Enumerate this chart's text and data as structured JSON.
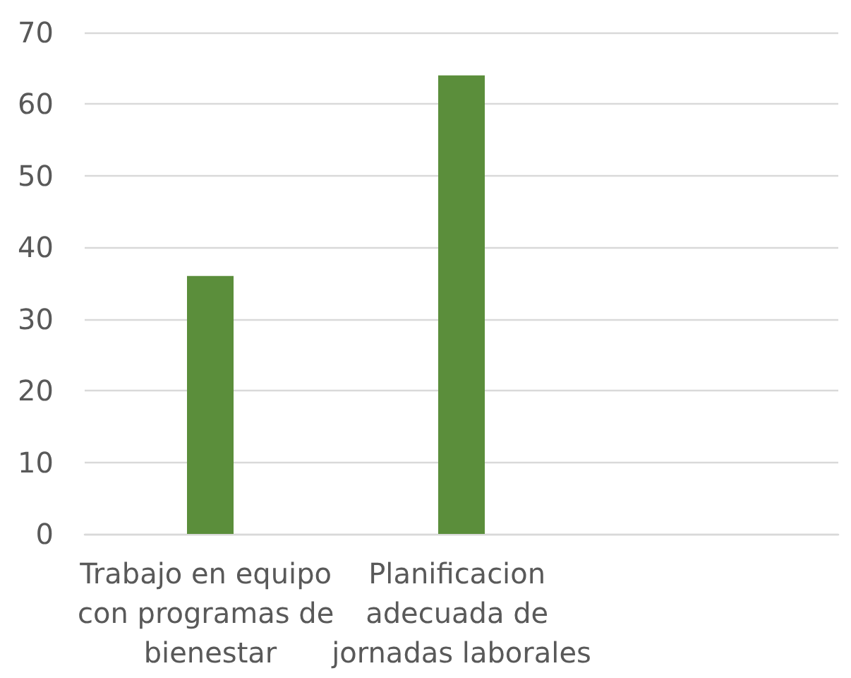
{
  "chart_data": {
    "type": "bar",
    "categories": [
      "Trabajo en equipo con programas de bienestar",
      "Planificacion adecuada de jornadas laborales",
      null
    ],
    "values": [
      36,
      64,
      null
    ],
    "color": "#5b8e3b",
    "ylim": [
      0,
      70
    ],
    "yticks": [
      0,
      10,
      20,
      30,
      40,
      50,
      60,
      70
    ],
    "grid": "y"
  }
}
